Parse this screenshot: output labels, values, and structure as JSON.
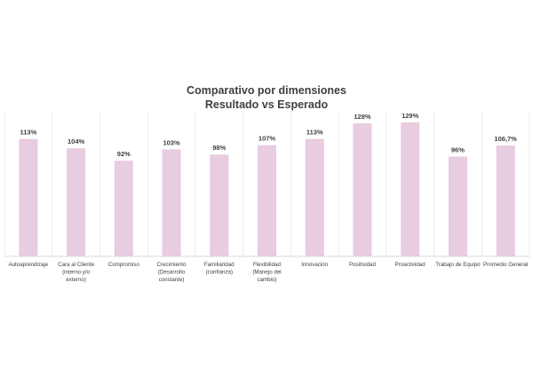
{
  "chart_data": {
    "type": "bar",
    "title_lines": [
      "Comparativo  por dimensiones",
      "Resultado vs Esperado"
    ],
    "categories": [
      [
        "Autoaprendizaje"
      ],
      [
        "Cara al Cliente",
        "(interno y/o",
        "externo)"
      ],
      [
        "Compromiso"
      ],
      [
        "Crecimiento",
        "(Desarrollo",
        "constante)"
      ],
      [
        "Familiaridad",
        "(confianza)"
      ],
      [
        "Flexibilidad",
        "(Manejo del",
        "cambio)"
      ],
      [
        "Innovación"
      ],
      [
        "Positividad"
      ],
      [
        "Proactividad"
      ],
      [
        "Trabajo de Equipo"
      ],
      [
        "Promedio General"
      ]
    ],
    "values": [
      113,
      104,
      92,
      103,
      98,
      107,
      113,
      128,
      129,
      96,
      106.7
    ],
    "data_labels": [
      "113%",
      "104%",
      "92%",
      "103%",
      "98%",
      "107%",
      "113%",
      "128%",
      "129%",
      "96%",
      "106,7%"
    ],
    "ylim": [
      0,
      140
    ],
    "bar_color": "#e8ccdf",
    "grid": false,
    "category_separators": true
  }
}
